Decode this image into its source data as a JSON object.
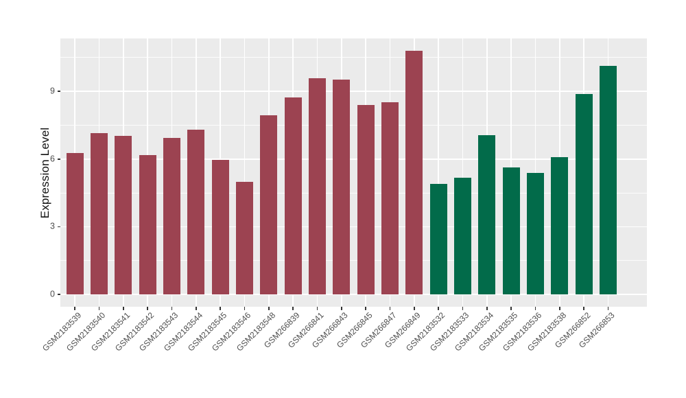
{
  "chart_data": {
    "type": "bar",
    "title": "",
    "xlabel": "",
    "ylabel": "Expression Level",
    "legend_position": "none",
    "grid": true,
    "categories": [
      "GSM2183539",
      "GSM2183540",
      "GSM2183541",
      "GSM2183542",
      "GSM2183543",
      "GSM2183544",
      "GSM2183545",
      "GSM2183546",
      "GSM2183548",
      "GSM266839",
      "GSM266841",
      "GSM266843",
      "GSM266845",
      "GSM266847",
      "GSM266849",
      "GSM2183532",
      "GSM2183533",
      "GSM2183534",
      "GSM2183535",
      "GSM2183536",
      "GSM2183538",
      "GSM266852",
      "GSM266853"
    ],
    "values": [
      6.27,
      7.15,
      7.02,
      6.18,
      6.94,
      7.3,
      5.96,
      4.98,
      7.93,
      8.72,
      9.57,
      9.52,
      8.38,
      8.5,
      10.79,
      4.9,
      5.18,
      7.05,
      5.64,
      5.4,
      6.09,
      8.89,
      10.13
    ],
    "bar_colors": [
      "#9C4351",
      "#9C4351",
      "#9C4351",
      "#9C4351",
      "#9C4351",
      "#9C4351",
      "#9C4351",
      "#9C4351",
      "#9C4351",
      "#9C4351",
      "#9C4351",
      "#9C4351",
      "#9C4351",
      "#9C4351",
      "#9C4351",
      "#026B4A",
      "#026B4A",
      "#026B4A",
      "#026B4A",
      "#026B4A",
      "#026B4A",
      "#026B4A",
      "#026B4A"
    ],
    "group_split_index": 15,
    "group_colors": {
      "left_group": "#9C4351",
      "right_group": "#026B4A"
    },
    "yticks": [
      0,
      3,
      6,
      9
    ],
    "yticks_minor": [
      1.5,
      4.5,
      7.5,
      10.5
    ],
    "ylim": [
      -0.54,
      11.34
    ],
    "panel_background": "#EBEBEB",
    "gridline_color": "#FFFFFF",
    "tick_color": "#333333",
    "axis_text_color": "#4d4d4d",
    "axis_title_color": "#111111"
  }
}
